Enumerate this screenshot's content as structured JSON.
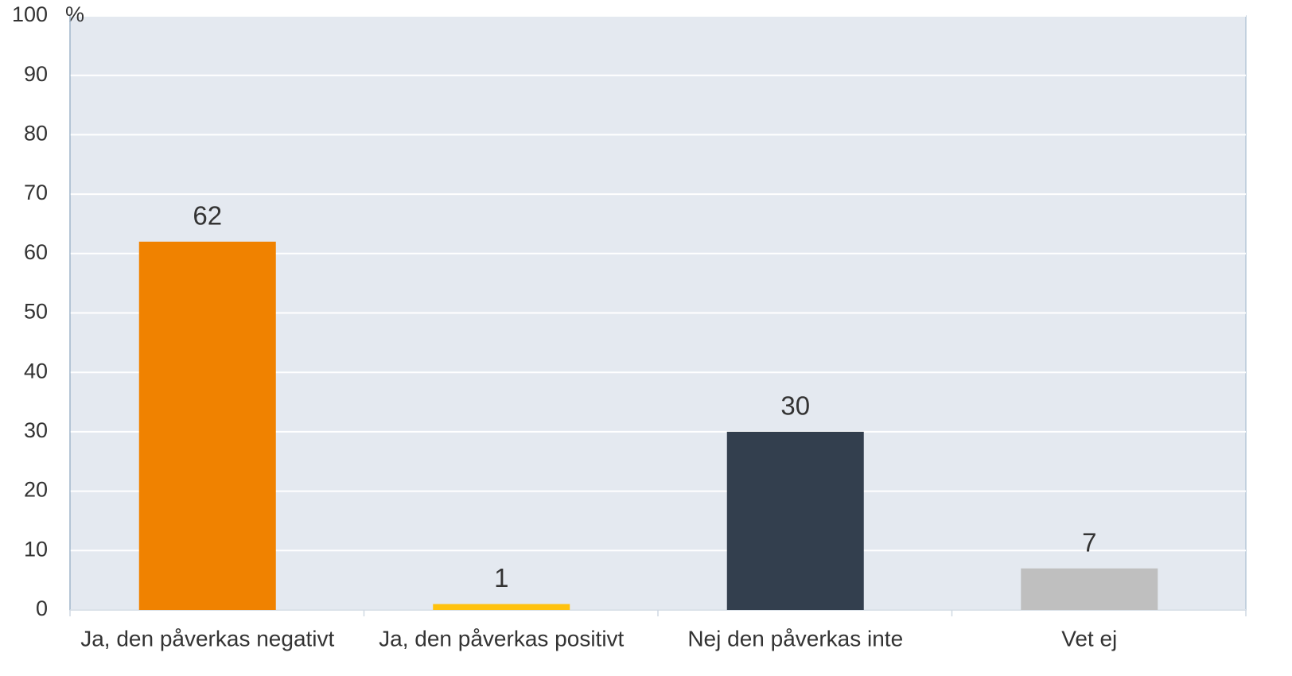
{
  "chart_data": {
    "type": "bar",
    "y_unit": "%",
    "categories": [
      "Ja, den påverkas negativt",
      "Ja, den påverkas positivt",
      "Nej den påverkas inte",
      "Vet ej"
    ],
    "values": [
      62,
      1,
      30,
      7
    ],
    "colors": [
      "#f08200",
      "#ffc20e",
      "#333f4e",
      "#bfbfbf"
    ],
    "ylim": [
      0,
      100
    ],
    "yticks": [
      0,
      10,
      20,
      30,
      40,
      50,
      60,
      70,
      80,
      90,
      100
    ],
    "grid": true
  }
}
